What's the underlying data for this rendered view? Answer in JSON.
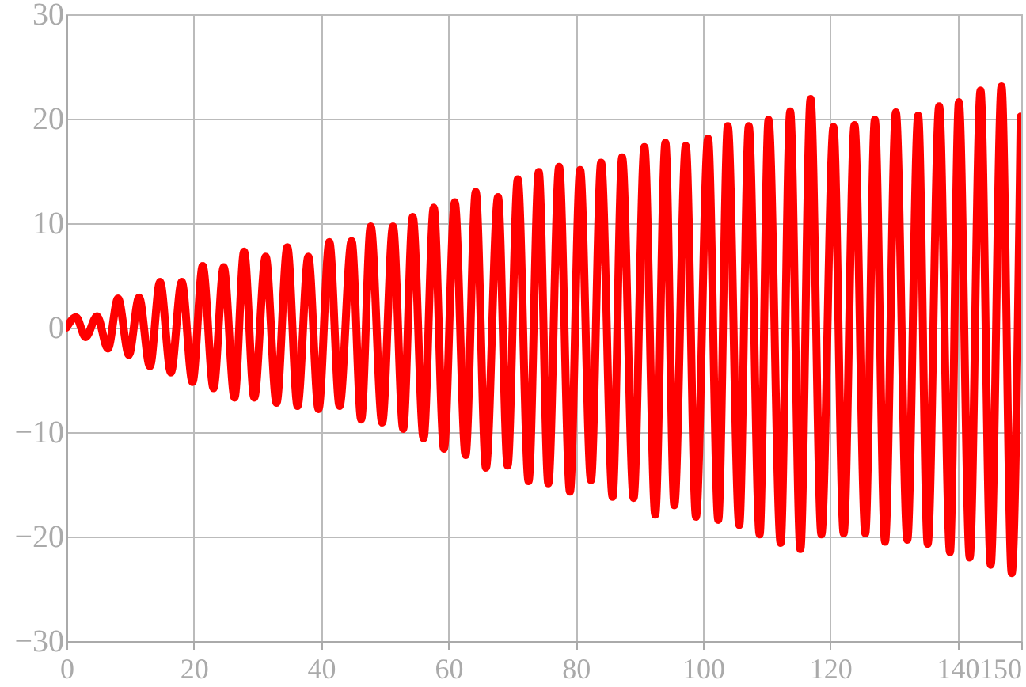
{
  "chart_data": {
    "type": "line",
    "color": "#ff0000",
    "line_style": "solid",
    "grid": true,
    "xlim": [
      0,
      150
    ],
    "xticks": [
      0,
      20,
      40,
      60,
      80,
      100,
      120,
      140,
      150
    ],
    "ylim": [
      -30,
      30
    ],
    "yticks": [
      -30,
      -20,
      -10,
      0,
      10,
      20,
      30
    ],
    "x": [
      0,
      1.5,
      3.0,
      4.8,
      6.5,
      8.1,
      9.8,
      11.4,
      13.1,
      14.7,
      16.4,
      18.1,
      19.8,
      21.4,
      23.1,
      24.7,
      26.4,
      27.9,
      29.5,
      31.3,
      33.0,
      34.7,
      36.3,
      38.0,
      39.6,
      41.3,
      42.9,
      44.8,
      46.3,
      47.8,
      49.6,
      51.3,
      52.9,
      54.4,
      56.1,
      57.7,
      59.3,
      61.0,
      62.7,
      64.3,
      65.9,
      67.8,
      69.3,
      70.9,
      72.6,
      74.2,
      75.7,
      77.4,
      79.1,
      80.7,
      82.4,
      84.0,
      85.8,
      87.3,
      89.1,
      90.8,
      92.5,
      94.1,
      95.5,
      97.3,
      98.9,
      100.8,
      102.4,
      103.9,
      105.7,
      107.2,
      108.9,
      110.3,
      112.2,
      113.7,
      115.3,
      116.9,
      118.6,
      120.5,
      122.1,
      123.8,
      125.5,
      127.0,
      128.6,
      130.3,
      132.1,
      133.8,
      135.3,
      137.1,
      138.8,
      140.2,
      141.9,
      143.6,
      145.2,
      146.9,
      148.5,
      149.9
    ],
    "values": [
      0,
      1.0,
      -0.9,
      1.1,
      -2.0,
      2.8,
      -2.6,
      2.9,
      -3.7,
      4.4,
      -4.3,
      4.4,
      -5.2,
      5.9,
      -5.8,
      5.8,
      -6.7,
      7.3,
      -6.7,
      6.8,
      -7.2,
      7.7,
      -7.5,
      6.8,
      -7.8,
      8.2,
      -7.5,
      8.3,
      -8.8,
      9.7,
      -9.1,
      9.7,
      -9.7,
      10.6,
      -10.6,
      11.5,
      -11.6,
      12.0,
      -12.2,
      13.0,
      -13.4,
      12.5,
      -13.2,
      14.2,
      -14.7,
      14.9,
      -14.9,
      15.4,
      -15.7,
      15.1,
      -14.6,
      15.8,
      -16.2,
      16.3,
      -16.3,
      17.3,
      -17.9,
      17.7,
      -17.0,
      17.4,
      -18.1,
      18.1,
      -18.4,
      19.3,
      -18.9,
      19.3,
      -19.8,
      19.9,
      -20.6,
      20.7,
      -21.2,
      21.9,
      -19.8,
      19.2,
      -19.7,
      19.4,
      -19.7,
      19.9,
      -20.5,
      20.6,
      -20.3,
      20.3,
      -20.7,
      21.2,
      -21.5,
      21.6,
      -22.0,
      22.7,
      -22.7,
      23.1,
      -23.5,
      20.2
    ]
  }
}
